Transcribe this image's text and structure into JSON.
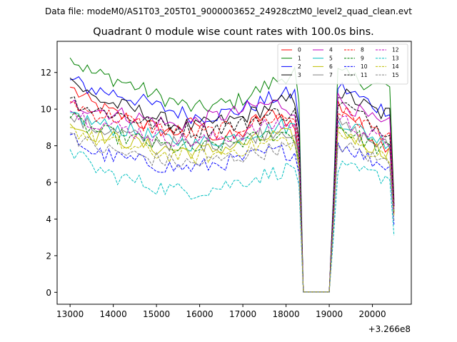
{
  "chart_data": {
    "type": "line",
    "suptitle": "Data file: modeM0/AS1T03_205T01_9000003652_24928cztM0_level2_quad_clean.evt",
    "title": "Quadrant 0 module wise count rates with 100.0s bins.",
    "xlabel": "",
    "ylabel": "",
    "x_offset_label": "+3.266e8",
    "xlim": [
      12700,
      20900
    ],
    "ylim": [
      -0.65,
      13.7
    ],
    "x_ticks": [
      13000,
      14000,
      15000,
      16000,
      17000,
      18000,
      19000,
      20000
    ],
    "y_ticks": [
      0,
      2,
      4,
      6,
      8,
      10,
      12
    ],
    "x": [
      13000,
      13100,
      13200,
      13300,
      13400,
      13500,
      13600,
      13700,
      13800,
      13900,
      14000,
      14100,
      14200,
      14300,
      14400,
      14500,
      14600,
      14700,
      14800,
      14900,
      15000,
      15100,
      15200,
      15300,
      15400,
      15500,
      15600,
      15700,
      15800,
      15900,
      16000,
      16100,
      16200,
      16300,
      16400,
      16500,
      16600,
      16700,
      16800,
      16900,
      17000,
      17100,
      17200,
      17300,
      17400,
      17500,
      17600,
      17700,
      17800,
      17900,
      18000,
      18100,
      18200,
      18300,
      18400,
      18500,
      18600,
      18700,
      18800,
      18900,
      19000,
      19100,
      19200,
      19300,
      19400,
      19500,
      19600,
      19700,
      19800,
      19900,
      20000,
      20100,
      20200,
      20300,
      20400,
      20500
    ],
    "gap": {
      "start": 18300,
      "end": 19100,
      "floor": 0.02
    },
    "series": [
      {
        "name": "0",
        "color": "#ff0000",
        "dash": "solid",
        "start": 11.2,
        "end": 4.3,
        "levels": [
          11.2,
          10.3,
          9.8,
          9.4,
          9.0,
          8.7,
          9.3,
          8.5,
          8.4,
          9.5,
          9.8,
          8.8
        ],
        "last": 8.8,
        "after": 10.5
      },
      {
        "name": "1",
        "color": "#008000",
        "dash": "solid",
        "start": 12.8,
        "end": 5.0,
        "levels": [
          12.8,
          12.0,
          11.7,
          11.3,
          10.8,
          10.4,
          10.0,
          10.2,
          10.4,
          11.0,
          11.6,
          12.2
        ],
        "last": 12.2,
        "after": 12.0
      },
      {
        "name": "2",
        "color": "#0000ff",
        "dash": "solid",
        "start": 11.6,
        "end": 4.7,
        "levels": [
          11.6,
          11.1,
          10.9,
          10.6,
          10.2,
          9.9,
          9.6,
          9.7,
          9.9,
          10.3,
          10.7,
          10.9
        ],
        "last": 10.9,
        "after": 11.4
      },
      {
        "name": "3",
        "color": "#000000",
        "dash": "solid",
        "start": 11.7,
        "end": 4.8,
        "levels": [
          11.7,
          10.7,
          10.3,
          10.0,
          9.6,
          9.2,
          9.0,
          9.3,
          9.4,
          9.9,
          10.3,
          10.6
        ],
        "last": 10.6,
        "after": 11.1
      },
      {
        "name": "4",
        "color": "#bf00bf",
        "dash": "solid",
        "start": 10.3,
        "end": 4.7,
        "levels": [
          10.3,
          10.1,
          9.8,
          9.6,
          9.4,
          9.1,
          9.3,
          9.6,
          9.8,
          10.2,
          10.3,
          9.9
        ],
        "last": 9.9,
        "after": 10.7
      },
      {
        "name": "5",
        "color": "#00bfbf",
        "dash": "solid",
        "start": 9.8,
        "end": 4.5,
        "levels": [
          9.8,
          9.3,
          9.0,
          8.8,
          8.5,
          8.3,
          8.1,
          8.3,
          8.5,
          8.8,
          9.1,
          9.0
        ],
        "last": 9.0,
        "after": 9.6
      },
      {
        "name": "6",
        "color": "#bfbf00",
        "dash": "solid",
        "start": 9.2,
        "end": 4.4,
        "levels": [
          9.2,
          8.7,
          8.4,
          8.2,
          7.9,
          7.8,
          7.7,
          7.8,
          8.0,
          8.3,
          8.6,
          8.4
        ],
        "last": 8.4,
        "after": 9.0
      },
      {
        "name": "7",
        "color": "#808080",
        "dash": "solid",
        "start": 9.6,
        "end": 4.5,
        "levels": [
          9.6,
          9.0,
          8.8,
          8.5,
          8.3,
          8.1,
          8.0,
          8.2,
          8.3,
          8.6,
          8.9,
          8.7
        ],
        "last": 8.7,
        "after": 9.3
      },
      {
        "name": "8",
        "color": "#ff0000",
        "dash": "dashed",
        "start": 10.4,
        "end": 4.6,
        "levels": [
          10.4,
          9.8,
          9.6,
          9.3,
          9.0,
          8.8,
          8.6,
          8.8,
          9.0,
          9.3,
          9.6,
          9.5
        ],
        "last": 9.5,
        "after": 10.1
      },
      {
        "name": "9",
        "color": "#008000",
        "dash": "dashed",
        "start": 9.5,
        "end": 4.4,
        "levels": [
          9.5,
          8.9,
          8.6,
          8.4,
          8.1,
          7.9,
          7.8,
          8.0,
          8.2,
          8.4,
          8.7,
          8.5
        ],
        "last": 8.5,
        "after": 9.2
      },
      {
        "name": "10",
        "color": "#0000ff",
        "dash": "dashed",
        "start": 8.6,
        "end": 3.7,
        "levels": [
          8.6,
          7.7,
          7.4,
          7.2,
          7.0,
          6.8,
          6.8,
          7.0,
          7.2,
          7.5,
          7.7,
          7.6
        ],
        "last": 7.6,
        "after": 8.3
      },
      {
        "name": "11",
        "color": "#000000",
        "dash": "dashed",
        "start": 10.6,
        "end": 4.7,
        "levels": [
          10.6,
          10.0,
          9.8,
          9.5,
          9.2,
          9.0,
          8.8,
          9.0,
          9.1,
          9.5,
          9.8,
          9.7
        ],
        "last": 9.7,
        "after": 10.6
      },
      {
        "name": "12",
        "color": "#bf00bf",
        "dash": "dashed",
        "start": 9.9,
        "end": 4.5,
        "levels": [
          9.9,
          9.4,
          9.1,
          8.8,
          8.6,
          8.4,
          8.2,
          8.4,
          8.6,
          8.9,
          9.2,
          9.0
        ],
        "last": 9.0,
        "after": 9.7
      },
      {
        "name": "13",
        "color": "#00bfbf",
        "dash": "dashed",
        "start": 7.8,
        "end": 3.1,
        "levels": [
          7.8,
          6.9,
          6.4,
          6.1,
          5.8,
          5.6,
          5.5,
          5.7,
          6.0,
          6.3,
          6.6,
          6.9
        ],
        "last": 6.9,
        "after": 6.8
      },
      {
        "name": "14",
        "color": "#bfbf00",
        "dash": "dashed",
        "start": 9.0,
        "end": 4.2,
        "levels": [
          9.0,
          8.4,
          8.1,
          7.9,
          7.6,
          7.5,
          7.4,
          7.5,
          7.8,
          8.0,
          8.3,
          8.1
        ],
        "last": 8.1,
        "after": 8.8
      },
      {
        "name": "15",
        "color": "#808080",
        "dash": "dashed",
        "start": 8.7,
        "end": 3.9,
        "levels": [
          8.7,
          8.0,
          7.7,
          7.5,
          7.3,
          7.1,
          7.0,
          7.2,
          7.4,
          7.6,
          7.9,
          7.8
        ],
        "last": 7.8,
        "after": 8.2
      }
    ],
    "legend_placement": "upper-right",
    "legend_columns": 4
  }
}
